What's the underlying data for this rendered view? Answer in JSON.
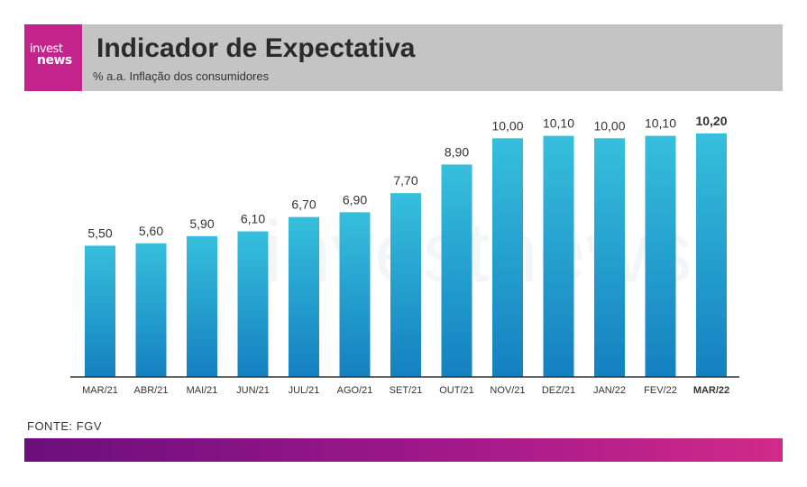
{
  "header": {
    "logo": {
      "line1": "invest",
      "line2": "news"
    },
    "title": "Indicador de Expectativa",
    "subtitle": "% a.a. Inflação dos consumidores"
  },
  "watermark": "investnews",
  "source": "FONTE: FGV",
  "colors": {
    "header_bg": "#c4c4c4",
    "logo_bg": "#c2248c",
    "bar_top": "#36bfdc",
    "bar_bottom": "#1480c0",
    "footer_start": "#6a0f7c",
    "footer_end": "#d12a8a"
  },
  "chart_data": {
    "type": "bar",
    "categories": [
      "MAR/21",
      "ABR/21",
      "MAI/21",
      "JUN/21",
      "JUL/21",
      "AGO/21",
      "SET/21",
      "OUT/21",
      "NOV/21",
      "DEZ/21",
      "JAN/22",
      "FEV/22",
      "MAR/22"
    ],
    "values": [
      5.5,
      5.6,
      5.9,
      6.1,
      6.7,
      6.9,
      7.7,
      8.9,
      10.0,
      10.1,
      10.0,
      10.1,
      10.2
    ],
    "value_labels": [
      "5,50",
      "5,60",
      "5,90",
      "6,10",
      "6,70",
      "6,90",
      "7,70",
      "8,90",
      "10,00",
      "10,10",
      "10,00",
      "10,10",
      "10,20"
    ],
    "highlight_index": 12,
    "ylim": [
      0,
      10.2
    ],
    "grid": false,
    "title": "",
    "xlabel": "",
    "ylabel": ""
  }
}
